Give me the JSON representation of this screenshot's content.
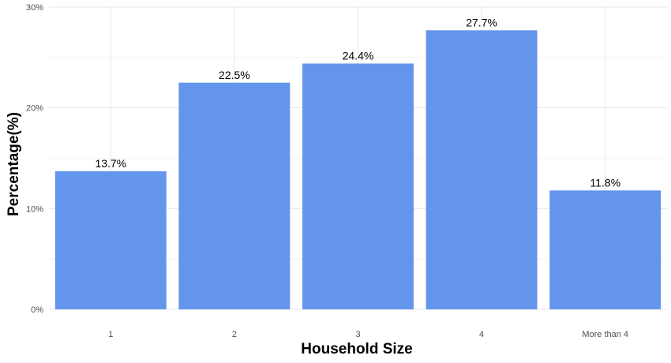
{
  "chart_data": {
    "type": "bar",
    "title": "",
    "xlabel": "Household Size",
    "ylabel": "Percentage(%)",
    "categories": [
      "1",
      "2",
      "3",
      "4",
      "More than 4"
    ],
    "values": [
      13.7,
      22.5,
      24.4,
      27.7,
      11.8
    ],
    "data_labels": [
      "13.7%",
      "22.5%",
      "24.4%",
      "27.7%",
      "11.8%"
    ],
    "ylim": [
      0,
      30
    ],
    "y_ticks": [
      0,
      10,
      20,
      30
    ],
    "y_tick_labels": [
      "0%",
      "10%",
      "20%",
      "30%"
    ],
    "grid": true,
    "legend": "none",
    "bar_color": "#6495ED"
  }
}
